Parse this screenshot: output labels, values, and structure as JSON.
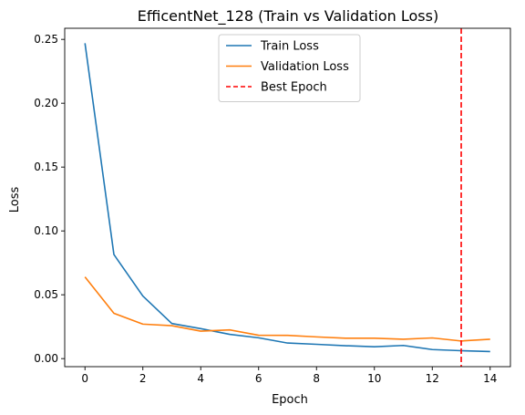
{
  "chart_data": {
    "type": "line",
    "title": "EfficentNet_128 (Train vs Validation Loss)",
    "xlabel": "Epoch",
    "ylabel": "Loss",
    "xlim": [
      -0.7,
      14.7
    ],
    "ylim": [
      -0.0063,
      0.2587
    ],
    "xticks": [
      0,
      2,
      4,
      6,
      8,
      10,
      12,
      14
    ],
    "xtick_labels": [
      "0",
      "2",
      "4",
      "6",
      "8",
      "10",
      "12",
      "14"
    ],
    "yticks": [
      0.0,
      0.05,
      0.1,
      0.15,
      0.2,
      0.25
    ],
    "ytick_labels": [
      "0.00",
      "0.05",
      "0.10",
      "0.15",
      "0.20",
      "0.25"
    ],
    "grid": false,
    "legend_position": "upper center",
    "x": [
      0,
      1,
      2,
      3,
      4,
      5,
      6,
      7,
      8,
      9,
      10,
      11,
      12,
      13,
      14
    ],
    "series": [
      {
        "name": "Train Loss",
        "color": "#1f77b4",
        "style": "solid",
        "values": [
          0.247,
          0.0815,
          0.049,
          0.0275,
          0.0235,
          0.019,
          0.0163,
          0.0122,
          0.0112,
          0.0101,
          0.0093,
          0.0103,
          0.0071,
          0.0062,
          0.0055
        ]
      },
      {
        "name": "Validation Loss",
        "color": "#ff7f0e",
        "style": "solid",
        "values": [
          0.064,
          0.0355,
          0.027,
          0.0258,
          0.0215,
          0.0225,
          0.0183,
          0.0182,
          0.017,
          0.016,
          0.016,
          0.0152,
          0.0162,
          0.0138,
          0.0152
        ]
      }
    ],
    "vlines": [
      {
        "name": "Best Epoch",
        "x": 13,
        "color": "#ff0000",
        "style": "dashed"
      }
    ]
  }
}
